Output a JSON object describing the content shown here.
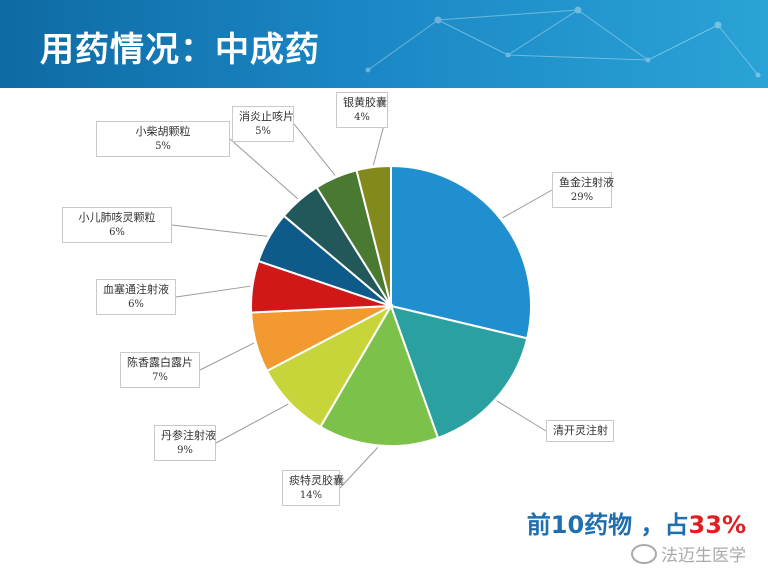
{
  "header": {
    "title": "用药情况：中成药"
  },
  "chart_data": {
    "type": "pie",
    "title": "",
    "slices": [
      {
        "label": "鱼金注射液",
        "value": 29,
        "display": "29%",
        "color": "#1f8fd0"
      },
      {
        "label": "清开灵注射",
        "value": 16,
        "display": "",
        "color": "#2aa0a0"
      },
      {
        "label": "痰特灵胶囊",
        "value": 14,
        "display": "14%",
        "color": "#7cc24a"
      },
      {
        "label": "丹参注射液",
        "value": 9,
        "display": "9%",
        "color": "#c6d63a"
      },
      {
        "label": "陈香露白露片",
        "value": 7,
        "display": "7%",
        "color": "#f29a30"
      },
      {
        "label": "血塞通注射液",
        "value": 6,
        "display": "6%",
        "color": "#d01818"
      },
      {
        "label": "小儿肺咳灵颗粒",
        "value": 6,
        "display": "6%",
        "color": "#0e5a88"
      },
      {
        "label": "小柴胡颗粒",
        "value": 5,
        "display": "5%",
        "color": "#22585a"
      },
      {
        "label": "消炎止咳片",
        "value": 5,
        "display": "5%",
        "color": "#4a7a32"
      },
      {
        "label": "银黄胶囊",
        "value": 4,
        "display": "4%",
        "color": "#828a1e"
      }
    ]
  },
  "summary": {
    "prefix": "前10药物 ，占",
    "highlight": "33%"
  },
  "watermark": {
    "text": "法迈生医学",
    "icon": "wechat-icon"
  }
}
